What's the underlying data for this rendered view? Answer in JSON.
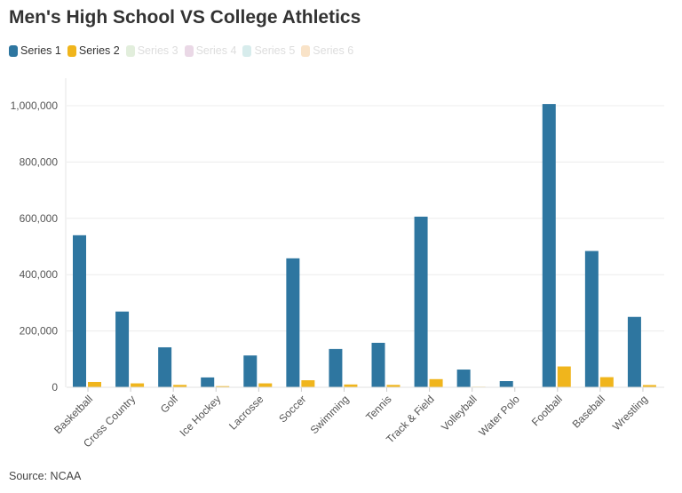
{
  "chart_data": {
    "type": "bar",
    "title": "Men's High School VS College Athletics",
    "source": "Source: NCAA",
    "categories": [
      "Basketball",
      "Cross Country",
      "Golf",
      "Ice Hockey",
      "Lacrosse",
      "Soccer",
      "Swimming",
      "Tennis",
      "Track & Field",
      "Volleyball",
      "Water Polo",
      "Football",
      "Baseball",
      "Wrestling"
    ],
    "series": [
      {
        "name": "Series 1",
        "color": "#2e76a0",
        "values": [
          540000,
          269000,
          142000,
          35000,
          113000,
          458000,
          136000,
          158000,
          606000,
          63000,
          22000,
          1006000,
          484000,
          250000
        ]
      },
      {
        "name": "Series 2",
        "color": "#f0b51c",
        "values": [
          19000,
          14000,
          8500,
          4000,
          14000,
          25000,
          10000,
          8500,
          29000,
          2000,
          1000,
          74000,
          36000,
          8000
        ]
      }
    ],
    "legend": [
      {
        "label": "Series 1",
        "color": "#2e76a0",
        "active": true
      },
      {
        "label": "Series 2",
        "color": "#f0b51c",
        "active": true
      },
      {
        "label": "Series 3",
        "color": "#e2eedc",
        "active": false
      },
      {
        "label": "Series 4",
        "color": "#ead8e6",
        "active": false
      },
      {
        "label": "Series 5",
        "color": "#d7ecec",
        "active": false
      },
      {
        "label": "Series 6",
        "color": "#f9e3c8",
        "active": false
      }
    ],
    "ylim": [
      0,
      1050000
    ],
    "yticks": [
      0,
      200000,
      400000,
      600000,
      800000,
      1000000
    ],
    "ytick_labels": [
      "0",
      "200,000",
      "400,000",
      "600,000",
      "800,000",
      "1,000,000"
    ],
    "grid": true,
    "legend_position": "top-left"
  }
}
